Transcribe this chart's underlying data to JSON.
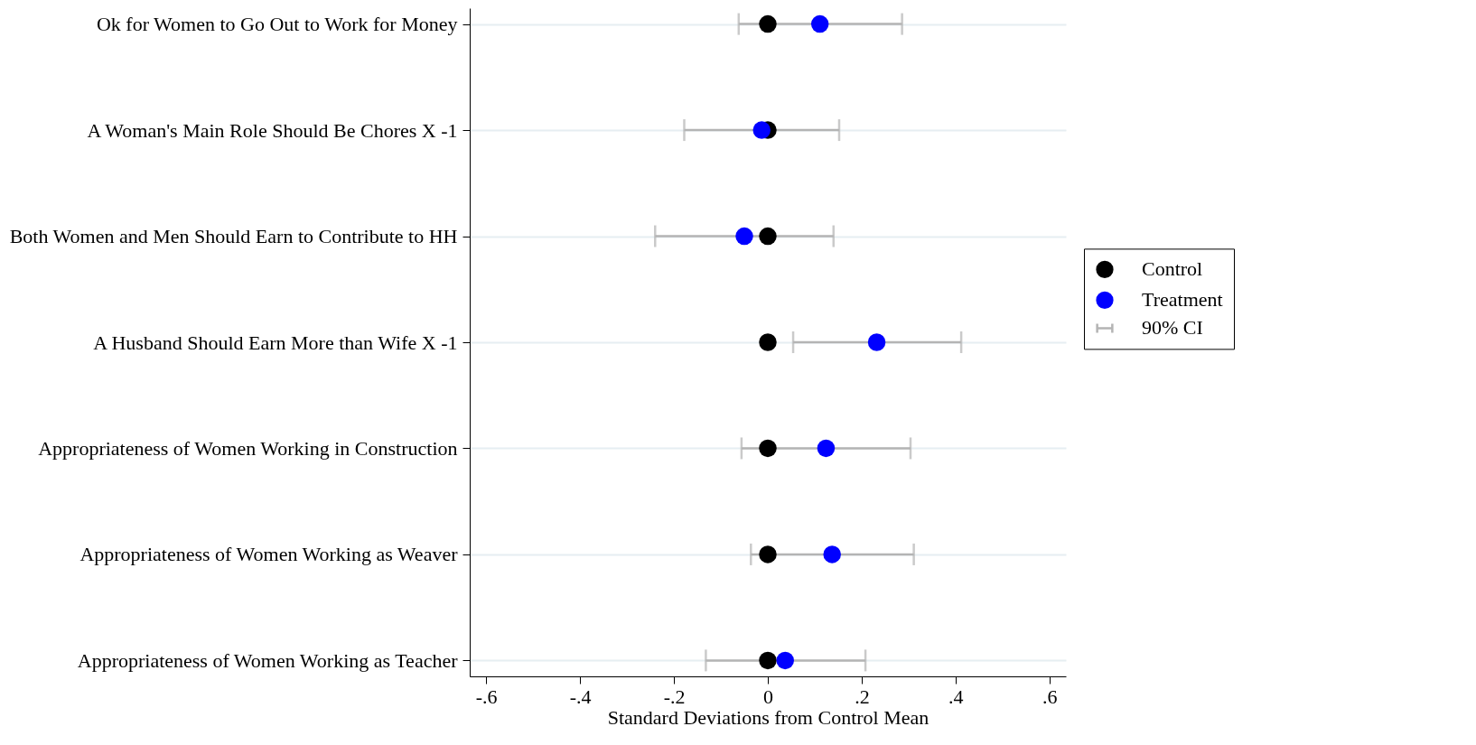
{
  "chart_data": {
    "type": "scatter",
    "xlabel": "Standard Deviations from Control Mean",
    "categories": [
      "Ok for Women to Go Out to Work for Money",
      "A Woman's Main Role Should Be Chores X -1",
      "Both Women and Men Should Earn to Contribute to HH",
      "A Husband Should Earn More than Wife X -1",
      "Appropriateness of Women Working in Construction",
      "Appropriateness of Women Working as Weaver",
      "Appropriateness of Women Working as Teacher"
    ],
    "series": [
      {
        "name": "Control",
        "color": "#000000",
        "values": [
          0,
          0,
          0,
          0,
          0,
          0,
          0
        ]
      },
      {
        "name": "Treatment",
        "color": "#0000ff",
        "values": [
          0.111,
          -0.013,
          -0.05,
          0.232,
          0.124,
          0.137,
          0.037
        ],
        "errors": [
          [
            -0.062,
            0.286
          ],
          [
            -0.178,
            0.152
          ],
          [
            -0.24,
            0.14
          ],
          [
            0.054,
            0.412
          ],
          [
            -0.056,
            0.304
          ],
          [
            -0.036,
            0.311
          ],
          [
            -0.132,
            0.208
          ]
        ]
      }
    ],
    "annotations": [
      "90% CI"
    ],
    "orientation": "horizontal",
    "xlim": [
      -0.635,
      0.635
    ],
    "xticks": [
      {
        "value": -0.6,
        "label": "-.6"
      },
      {
        "value": -0.4,
        "label": "-.4"
      },
      {
        "value": -0.2,
        "label": "-.2"
      },
      0,
      {
        "value": 0.2,
        "label": ".2"
      },
      {
        "value": 0.4,
        "label": ".4"
      },
      {
        "value": 0.6,
        "label": ".6"
      }
    ],
    "grid": "y",
    "legend": "right",
    "marker": "circle"
  }
}
